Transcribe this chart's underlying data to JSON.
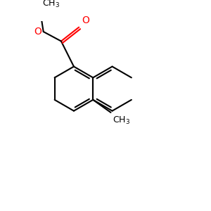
{
  "background": "#ffffff",
  "bond_color": "#000000",
  "o_color": "#ff0000",
  "lw": 1.5,
  "fig_size": [
    3.0,
    3.0
  ],
  "dpi": 100
}
